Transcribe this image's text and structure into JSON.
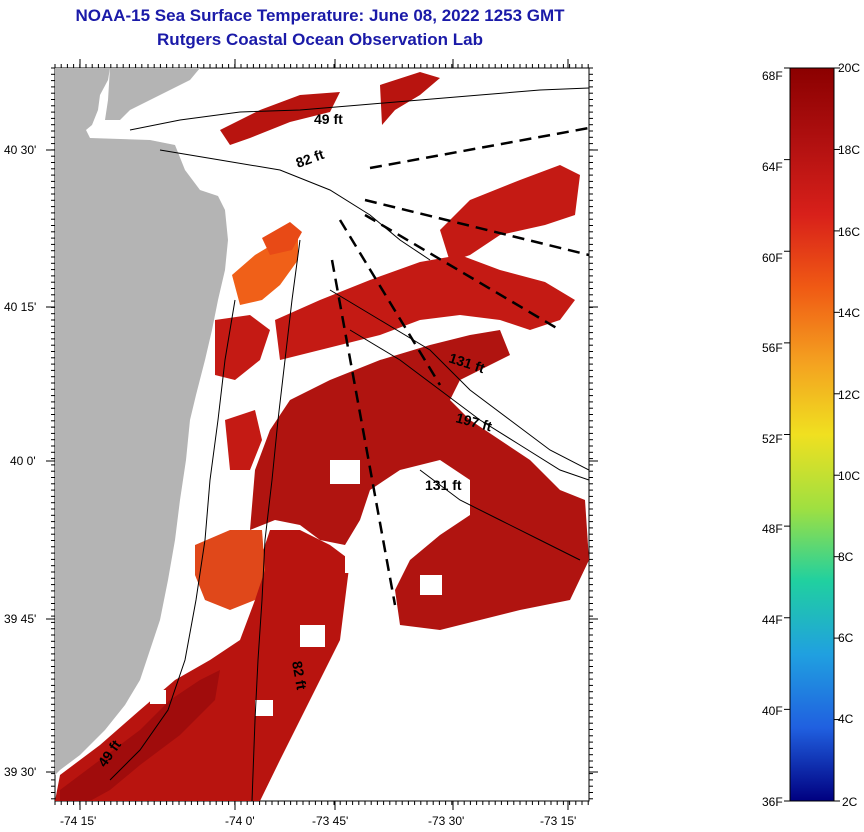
{
  "title": "NOAA-15 Sea Surface Temperature:  June 08, 2022 1253 GMT",
  "subtitle": "Rutgers Coastal Ocean Observation Lab",
  "lat_labels": [
    "40 30'",
    "40 15'",
    "40 0'",
    "39 45'",
    "39 30'"
  ],
  "lon_labels": [
    "-74 15'",
    "-74 0'",
    "-73 45'",
    "-73 30'",
    "-73 15'"
  ],
  "depth_labels": [
    "49 ft",
    "82 ft",
    "131 ft",
    "197 ft",
    "131 ft",
    "82 ft",
    "49 ft"
  ],
  "colorbar": {
    "f_labels": [
      "68F",
      "64F",
      "60F",
      "56F",
      "52F",
      "48F",
      "44F",
      "40F",
      "36F"
    ],
    "c_labels": [
      "20C",
      "18C",
      "16C",
      "14C",
      "12C",
      "10C",
      "8C",
      "6C",
      "4C",
      "2C"
    ],
    "stops": [
      "#8b0000",
      "#b01010",
      "#d8201a",
      "#f05a14",
      "#f4a020",
      "#f0e020",
      "#a0e040",
      "#20d0a0",
      "#20a0e0",
      "#2060e0",
      "#1010b0",
      "#000080"
    ]
  },
  "colors": {
    "land": "#b4b4b4",
    "warm": "#c41a14",
    "deep": "#a00c0c",
    "orange": "#f06018",
    "title": "#1a1aa8"
  }
}
